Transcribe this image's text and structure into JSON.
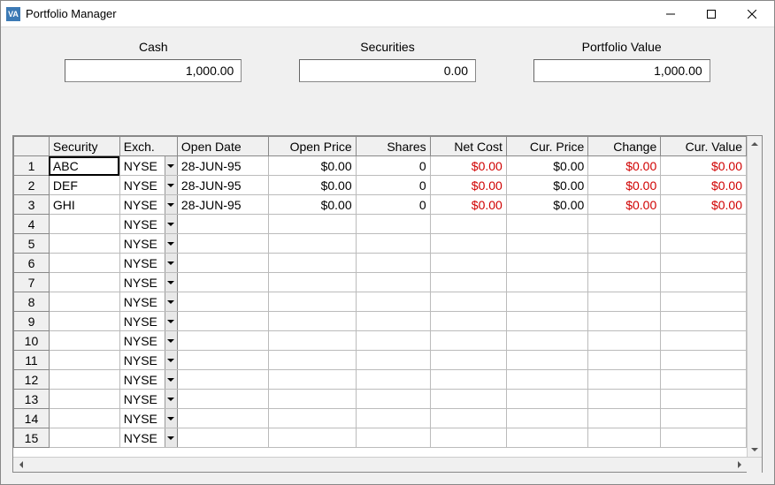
{
  "window": {
    "title": "Portfolio Manager",
    "icon_text": "VA",
    "icon_bg": "#3c7ab5"
  },
  "summary": {
    "cash_label": "Cash",
    "cash_value": "1,000.00",
    "securities_label": "Securities",
    "securities_value": "0.00",
    "portfolio_label": "Portfolio Value",
    "portfolio_value": "1,000.00"
  },
  "grid": {
    "columns": [
      "Security",
      "Exch.",
      "Open Date",
      "Open Price",
      "Shares",
      "Net Cost",
      "Cur. Price",
      "Change",
      "Cur. Value"
    ],
    "dropdown_default": "NYSE",
    "total_rows": 15,
    "red_columns": [
      "net_cost",
      "change",
      "cur_value"
    ],
    "colors": {
      "red_text": "#d00000",
      "header_bg": "#f0f0f0",
      "border": "#888888",
      "grid_line": "#bbbbbb"
    },
    "rows": [
      {
        "n": 1,
        "security": "ABC",
        "exch": "NYSE",
        "open_date": "28-JUN-95",
        "open_price": "$0.00",
        "shares": "0",
        "net_cost": "$0.00",
        "cur_price": "$0.00",
        "change": "$0.00",
        "cur_value": "$0.00",
        "focused": true
      },
      {
        "n": 2,
        "security": "DEF",
        "exch": "NYSE",
        "open_date": "28-JUN-95",
        "open_price": "$0.00",
        "shares": "0",
        "net_cost": "$0.00",
        "cur_price": "$0.00",
        "change": "$0.00",
        "cur_value": "$0.00"
      },
      {
        "n": 3,
        "security": "GHI",
        "exch": "NYSE",
        "open_date": "28-JUN-95",
        "open_price": "$0.00",
        "shares": "0",
        "net_cost": "$0.00",
        "cur_price": "$0.00",
        "change": "$0.00",
        "cur_value": "$0.00"
      },
      {
        "n": 4,
        "exch": "NYSE"
      },
      {
        "n": 5,
        "exch": "NYSE"
      },
      {
        "n": 6,
        "exch": "NYSE"
      },
      {
        "n": 7,
        "exch": "NYSE"
      },
      {
        "n": 8,
        "exch": "NYSE"
      },
      {
        "n": 9,
        "exch": "NYSE"
      },
      {
        "n": 10,
        "exch": "NYSE"
      },
      {
        "n": 11,
        "exch": "NYSE"
      },
      {
        "n": 12,
        "exch": "NYSE"
      },
      {
        "n": 13,
        "exch": "NYSE"
      },
      {
        "n": 14,
        "exch": "NYSE"
      },
      {
        "n": 15,
        "exch": "NYSE"
      }
    ]
  }
}
